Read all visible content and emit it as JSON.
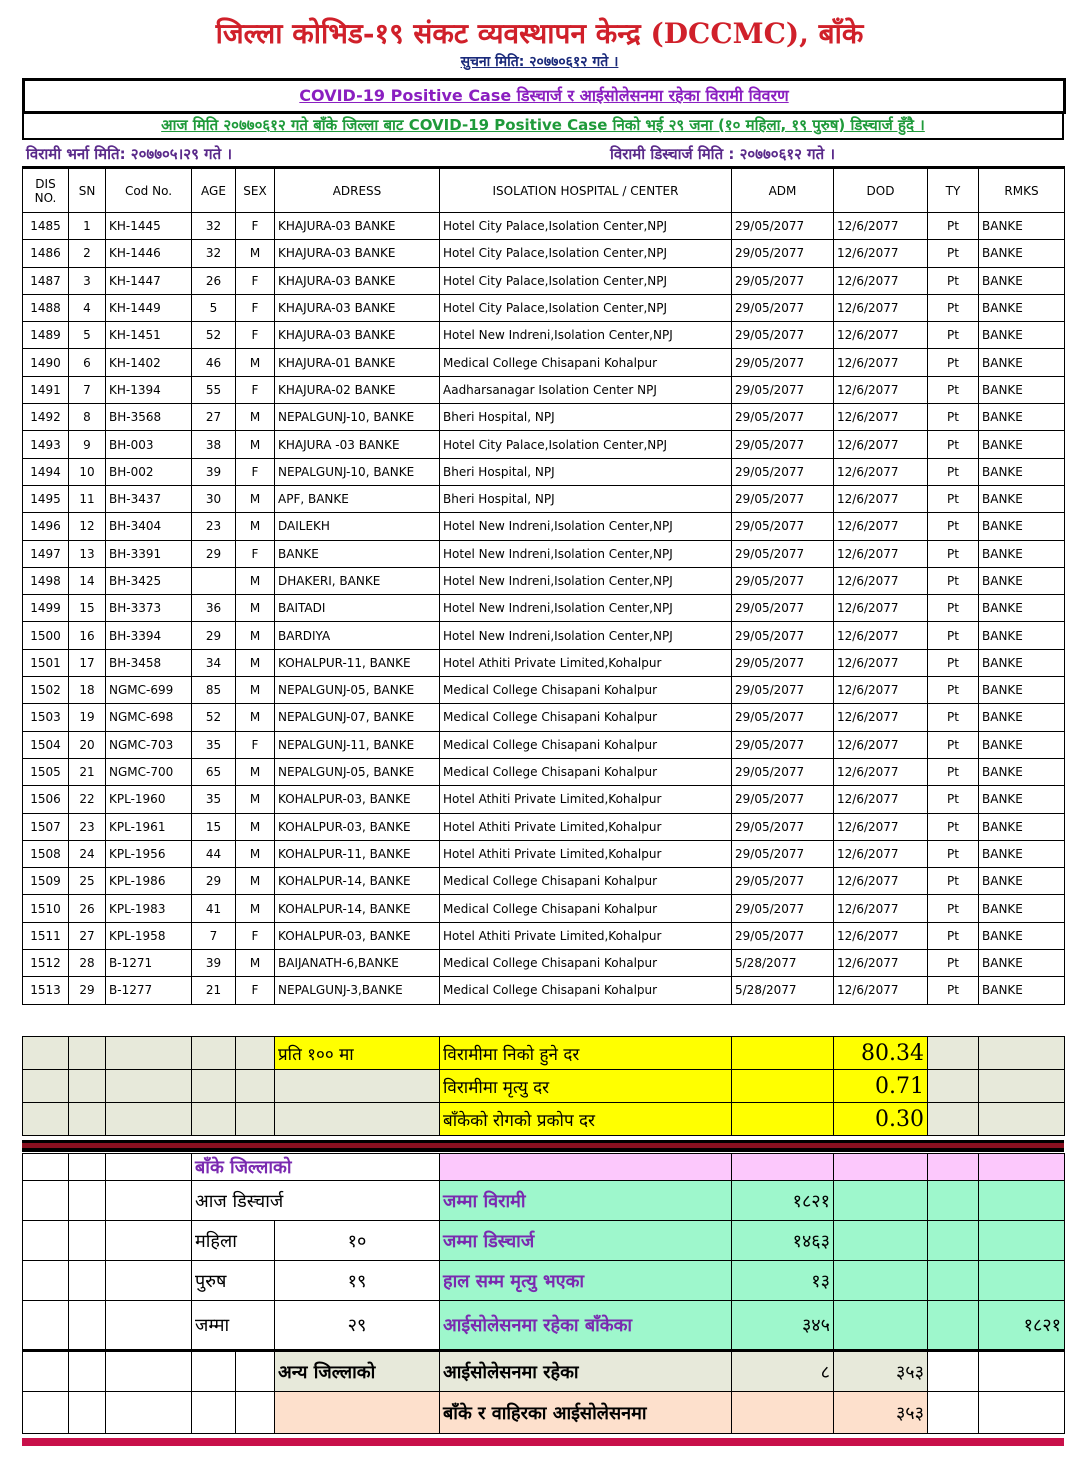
{
  "header": {
    "title": "जिल्ला कोभिड-१९ संकट व्यवस्थापन केन्द्र (DCCMC), बाँके",
    "notice": "सुचना मिति: २०७७०६१२ गते ।",
    "box_title": "COVID-19 Positive Case डिस्चार्ज र आईसोलेसनमा रहेका विरामी विवरण",
    "box_subtitle": "आज मिति २०७७०६१२ गते बाँके जिल्ला बाट COVID-19 Positive Case निको भई २९ जना (१० महिला, १९ पुरुष) डिस्चार्ज हुँदै ।",
    "admission_date": "विरामी भर्ना मिति: २०७७०५।२९ गते ।",
    "discharge_date": "विरामी डिस्चार्ज मिति : २०७७०६१२ गते ।"
  },
  "columns": [
    "DIS NO.",
    "SN",
    "Cod No.",
    "AGE",
    "SEX",
    "ADRESS",
    "ISOLATION HOSPITAL / CENTER",
    "ADM",
    "DOD",
    "TY",
    "RMKS"
  ],
  "rows": [
    [
      "1485",
      "1",
      "KH-1445",
      "32",
      "F",
      "KHAJURA-03 BANKE",
      "Hotel City Palace,Isolation Center,NPJ",
      "29/05/2077",
      "12/6/2077",
      "Pt",
      "BANKE"
    ],
    [
      "1486",
      "2",
      "KH-1446",
      "32",
      "M",
      "KHAJURA-03 BANKE",
      "Hotel City Palace,Isolation Center,NPJ",
      "29/05/2077",
      "12/6/2077",
      "Pt",
      "BANKE"
    ],
    [
      "1487",
      "3",
      "KH-1447",
      "26",
      "F",
      "KHAJURA-03 BANKE",
      "Hotel City Palace,Isolation Center,NPJ",
      "29/05/2077",
      "12/6/2077",
      "Pt",
      "BANKE"
    ],
    [
      "1488",
      "4",
      "KH-1449",
      "5",
      "F",
      "KHAJURA-03 BANKE",
      "Hotel City Palace,Isolation Center,NPJ",
      "29/05/2077",
      "12/6/2077",
      "Pt",
      "BANKE"
    ],
    [
      "1489",
      "5",
      "KH-1451",
      "52",
      "F",
      "KHAJURA-03 BANKE",
      "Hotel New Indreni,Isolation Center,NPJ",
      "29/05/2077",
      "12/6/2077",
      "Pt",
      "BANKE"
    ],
    [
      "1490",
      "6",
      "KH-1402",
      "46",
      "M",
      "KHAJURA-01 BANKE",
      "Medical College Chisapani Kohalpur",
      "29/05/2077",
      "12/6/2077",
      "Pt",
      "BANKE"
    ],
    [
      "1491",
      "7",
      "KH-1394",
      "55",
      "F",
      "KHAJURA-02 BANKE",
      "Aadharsanagar Isolation Center NPJ",
      "29/05/2077",
      "12/6/2077",
      "Pt",
      "BANKE"
    ],
    [
      "1492",
      "8",
      "BH-3568",
      "27",
      "M",
      "NEPALGUNJ-10, BANKE",
      "Bheri Hospital, NPJ",
      "29/05/2077",
      "12/6/2077",
      "Pt",
      "BANKE"
    ],
    [
      "1493",
      "9",
      "BH-003",
      "38",
      "M",
      "KHAJURA -03 BANKE",
      "Hotel City Palace,Isolation Center,NPJ",
      "29/05/2077",
      "12/6/2077",
      "Pt",
      "BANKE"
    ],
    [
      "1494",
      "10",
      "BH-002",
      "39",
      "F",
      "NEPALGUNJ-10, BANKE",
      "Bheri Hospital, NPJ",
      "29/05/2077",
      "12/6/2077",
      "Pt",
      "BANKE"
    ],
    [
      "1495",
      "11",
      "BH-3437",
      "30",
      "M",
      "APF, BANKE",
      "Bheri Hospital, NPJ",
      "29/05/2077",
      "12/6/2077",
      "Pt",
      "BANKE"
    ],
    [
      "1496",
      "12",
      "BH-3404",
      "23",
      "M",
      "DAILEKH",
      "Hotel New Indreni,Isolation Center,NPJ",
      "29/05/2077",
      "12/6/2077",
      "Pt",
      "BANKE"
    ],
    [
      "1497",
      "13",
      "BH-3391",
      "29",
      "F",
      "BANKE",
      "Hotel New Indreni,Isolation Center,NPJ",
      "29/05/2077",
      "12/6/2077",
      "Pt",
      "BANKE"
    ],
    [
      "1498",
      "14",
      "BH-3425",
      "",
      "M",
      "DHAKERI, BANKE",
      "Hotel New Indreni,Isolation Center,NPJ",
      "29/05/2077",
      "12/6/2077",
      "Pt",
      "BANKE"
    ],
    [
      "1499",
      "15",
      "BH-3373",
      "36",
      "M",
      "BAITADI",
      "Hotel New Indreni,Isolation Center,NPJ",
      "29/05/2077",
      "12/6/2077",
      "Pt",
      "BANKE"
    ],
    [
      "1500",
      "16",
      "BH-3394",
      "29",
      "M",
      "BARDIYA",
      "Hotel New Indreni,Isolation Center,NPJ",
      "29/05/2077",
      "12/6/2077",
      "Pt",
      "BANKE"
    ],
    [
      "1501",
      "17",
      "BH-3458",
      "34",
      "M",
      "KOHALPUR-11, BANKE",
      "Hotel Athiti Private Limited,Kohalpur",
      "29/05/2077",
      "12/6/2077",
      "Pt",
      "BANKE"
    ],
    [
      "1502",
      "18",
      "NGMC-699",
      "85",
      "M",
      "NEPALGUNJ-05, BANKE",
      "Medical College Chisapani Kohalpur",
      "29/05/2077",
      "12/6/2077",
      "Pt",
      "BANKE"
    ],
    [
      "1503",
      "19",
      "NGMC-698",
      "52",
      "M",
      "NEPALGUNJ-07, BANKE",
      "Medical College Chisapani Kohalpur",
      "29/05/2077",
      "12/6/2077",
      "Pt",
      "BANKE"
    ],
    [
      "1504",
      "20",
      "NGMC-703",
      "35",
      "F",
      "NEPALGUNJ-11, BANKE",
      "Medical College Chisapani Kohalpur",
      "29/05/2077",
      "12/6/2077",
      "Pt",
      "BANKE"
    ],
    [
      "1505",
      "21",
      "NGMC-700",
      "65",
      "M",
      "NEPALGUNJ-05, BANKE",
      "Medical College Chisapani Kohalpur",
      "29/05/2077",
      "12/6/2077",
      "Pt",
      "BANKE"
    ],
    [
      "1506",
      "22",
      "KPL-1960",
      "35",
      "M",
      "KOHALPUR-03, BANKE",
      "Hotel Athiti Private Limited,Kohalpur",
      "29/05/2077",
      "12/6/2077",
      "Pt",
      "BANKE"
    ],
    [
      "1507",
      "23",
      "KPL-1961",
      "15",
      "M",
      "KOHALPUR-03, BANKE",
      "Hotel Athiti Private Limited,Kohalpur",
      "29/05/2077",
      "12/6/2077",
      "Pt",
      "BANKE"
    ],
    [
      "1508",
      "24",
      "KPL-1956",
      "44",
      "M",
      "KOHALPUR-11, BANKE",
      "Hotel Athiti Private Limited,Kohalpur",
      "29/05/2077",
      "12/6/2077",
      "Pt",
      "BANKE"
    ],
    [
      "1509",
      "25",
      "KPL-1986",
      "29",
      "M",
      "KOHALPUR-14, BANKE",
      "Medical College Chisapani Kohalpur",
      "29/05/2077",
      "12/6/2077",
      "Pt",
      "BANKE"
    ],
    [
      "1510",
      "26",
      "KPL-1983",
      "41",
      "M",
      "KOHALPUR-14, BANKE",
      "Medical College Chisapani Kohalpur",
      "29/05/2077",
      "12/6/2077",
      "Pt",
      "BANKE"
    ],
    [
      "1511",
      "27",
      "KPL-1958",
      "7",
      "F",
      "KOHALPUR-03, BANKE",
      "Hotel Athiti Private Limited,Kohalpur",
      "29/05/2077",
      "12/6/2077",
      "Pt",
      "BANKE"
    ],
    [
      "1512",
      "28",
      "B-1271",
      "39",
      "M",
      "BAIJANATH-6,BANKE",
      "Medical College Chisapani Kohalpur",
      "5/28/2077",
      "12/6/2077",
      "Pt",
      "BANKE"
    ],
    [
      "1513",
      "29",
      "B-1277",
      "21",
      "F",
      "NEPALGUNJ-3,BANKE",
      "Medical College Chisapani Kohalpur",
      "5/28/2077",
      "12/6/2077",
      "Pt",
      "BANKE"
    ]
  ],
  "summary": {
    "per_hundred": "प्रति १०० मा",
    "rates": [
      {
        "label": "विरामीमा निको हुने दर",
        "value": "80.34"
      },
      {
        "label": "विरामीमा मृत्यु दर",
        "value": "0.71"
      },
      {
        "label": "बाँकेको रोगको प्रकोप दर",
        "value": "0.30"
      }
    ]
  },
  "district": {
    "heading": "बाँके जिल्लाको",
    "today_discharge": "आज डिस्चार्ज",
    "female_label": "महिला",
    "female": "१०",
    "male_label": "पुरुष",
    "male": "१९",
    "total_label": "जम्मा",
    "total": "२९",
    "total_patients_label": "जम्मा विरामी",
    "total_patients": "१८२१",
    "total_discharge_label": "जम्मा डिस्चार्ज",
    "total_discharge": "१४६३",
    "deaths_label": "हाल सम्म मृत्यु भएका",
    "deaths": "१३",
    "isolation_banke_label": "आईसोलेसनमा रहेका बाँकेका",
    "isolation_banke": "३४५",
    "isolation_banke_total": "१८२१",
    "other_district_label": "अन्य जिल्लाको",
    "isolation_other_label": "आईसोलेसनमा रहेका",
    "isolation_other": "८",
    "isolation_other_total": "३५३",
    "isolation_all_label": "बाँके र वाहिरका आईसोलेसनमा",
    "isolation_all": "३५३"
  },
  "colors": {
    "title": "#d0202a",
    "yellow": "#ffff00",
    "green": "#9ef7cc",
    "pink": "#fcc8fc",
    "peach": "#fde0cc"
  }
}
